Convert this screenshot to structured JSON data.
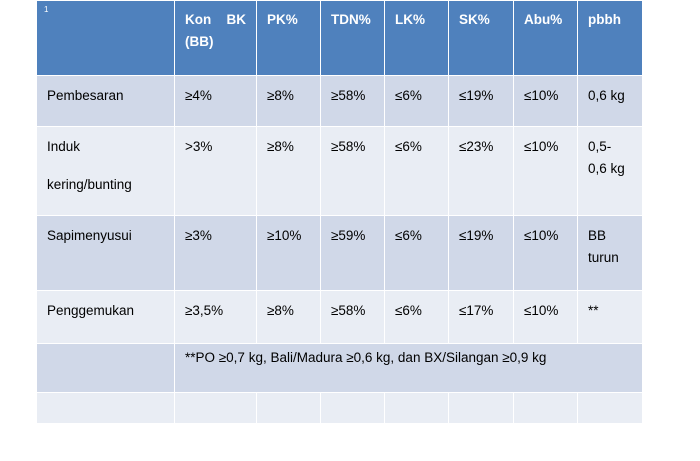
{
  "table": {
    "corner_marker": "1",
    "headers": {
      "con": "Kon",
      "bk": "BK",
      "bb": "(BB)",
      "pk": "PK%",
      "tdn": "TDN%",
      "lk": "LK%",
      "sk": "SK%",
      "abu": "Abu%",
      "pbbh": "pbbh"
    },
    "rows": [
      {
        "label": "Pembesaran",
        "kon_bk": "≥4%",
        "pk": "≥8%",
        "tdn": "≥58%",
        "lk": "≤6%",
        "sk": "≤19%",
        "abu": "≤10%",
        "pbbh": "0,6 kg"
      },
      {
        "label_line1": "Induk",
        "label_line2": "kering/bunting",
        "kon_bk": ">3%",
        "pk": "≥8%",
        "tdn": "≥58%",
        "lk": "≤6%",
        "sk": "≤23%",
        "abu": "≤10%",
        "pbbh_line1": "0,5-",
        "pbbh_line2": "0,6 kg"
      },
      {
        "label": "Sapimenyusui",
        "kon_bk": "≥3%",
        "pk": "≥10%",
        "tdn": "≥59%",
        "lk": "≤6%",
        "sk": "≤19%",
        "abu": "≤10%",
        "pbbh_line1": "BB",
        "pbbh_line2": "turun"
      },
      {
        "label": "Penggemukan",
        "kon_bk": "≥3,5%",
        "pk": "≥8%",
        "tdn": "≥58%",
        "lk": "≤6%",
        "sk": "≤17%",
        "abu": "≤10%",
        "pbbh": "**"
      }
    ],
    "footnote": "**PO ≥0,7 kg, Bali/Madura ≥0,6 kg, dan BX/Silangan ≥0,9 kg"
  }
}
